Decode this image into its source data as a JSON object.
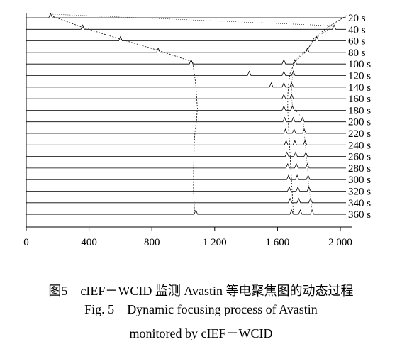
{
  "chart_data": {
    "type": "line",
    "title": "",
    "xlabel": "",
    "ylabel": "",
    "xlim": [
      0,
      2100
    ],
    "x_ticks": [
      {
        "value": 0,
        "label": "0"
      },
      {
        "value": 400,
        "label": "400"
      },
      {
        "value": 800,
        "label": "800"
      },
      {
        "value": 1200,
        "label": "1 200"
      },
      {
        "value": 1600,
        "label": "1 600"
      },
      {
        "value": 2000,
        "label": "2 000"
      }
    ],
    "grid": false,
    "legend": "none",
    "series_labels": [
      "20 s",
      "40 s",
      "60 s",
      "80 s",
      "100 s",
      "120 s",
      "140 s",
      "160 s",
      "180 s",
      "200 s",
      "220 s",
      "240 s",
      "260 s",
      "280 s",
      "300 s",
      "320 s",
      "340 s",
      "360 s"
    ],
    "series_times": [
      20,
      40,
      60,
      80,
      100,
      120,
      140,
      160,
      180,
      200,
      220,
      240,
      260,
      280,
      300,
      320,
      340,
      360
    ],
    "left_front_x": [
      155,
      355,
      590,
      840,
      1060,
      1070,
      1080,
      1085,
      1090,
      1085,
      1075,
      1070,
      1068,
      1066,
      1065,
      1065,
      1068,
      1072
    ],
    "right_front_x": [
      2040,
      1920,
      1830,
      1790,
      1710,
      1680,
      1670,
      1665,
      1665,
      1668,
      1672,
      1676,
      1680,
      1684,
      1688,
      1692,
      1696,
      1700
    ],
    "peaks_x": [
      [
        155
      ],
      [
        360,
        1960
      ],
      [
        600,
        1850
      ],
      [
        840,
        1790
      ],
      [
        1050,
        1640,
        1710
      ],
      [
        1420,
        1640,
        1700
      ],
      [
        1560,
        1640,
        1690
      ],
      [
        1640,
        1690
      ],
      [
        1640,
        1695
      ],
      [
        1645,
        1700,
        1760
      ],
      [
        1650,
        1705,
        1770
      ],
      [
        1655,
        1710,
        1775
      ],
      [
        1660,
        1715,
        1780
      ],
      [
        1665,
        1720,
        1790
      ],
      [
        1670,
        1725,
        1795
      ],
      [
        1675,
        1730,
        1800
      ],
      [
        1680,
        1735,
        1810
      ],
      [
        1080,
        1690,
        1745,
        1820
      ]
    ],
    "line_color": "#000000"
  },
  "figure": {
    "caption_cn_num": "图5",
    "caption_cn_text": "cIEF－WCID 监测 Avastin 等电聚焦图的动态过程",
    "caption_en_num": "Fig. 5",
    "caption_en_text1": "Dynamic focusing process of Avastin",
    "caption_en_text2": "monitored by cIEF－WCID"
  }
}
